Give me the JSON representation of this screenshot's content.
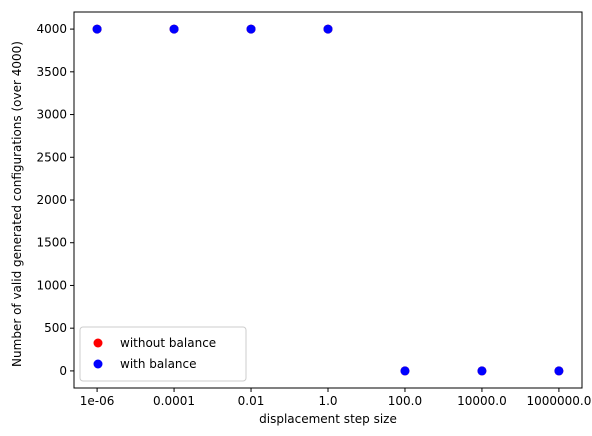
{
  "chart_data": {
    "type": "scatter",
    "title": "",
    "xlabel": "displacement step size",
    "ylabel": "Number of valid generated configurations (over 4000)",
    "x_scale": "categorical",
    "categories": [
      "1e-06",
      "0.0001",
      "0.01",
      "1.0",
      "100.0",
      "10000.0",
      "1000000.0"
    ],
    "y_ticks": [
      0,
      500,
      1000,
      1500,
      2000,
      2500,
      3000,
      3500,
      4000
    ],
    "ylim": [
      -200,
      4200
    ],
    "grid": false,
    "legend_position": "lower-left",
    "series": [
      {
        "name": "without balance",
        "color": "#ff0000",
        "values": [
          4000,
          4000,
          4000,
          4000,
          0,
          0,
          0
        ]
      },
      {
        "name": "with balance",
        "color": "#0000ff",
        "values": [
          4000,
          4000,
          4000,
          4000,
          0,
          0,
          0
        ]
      }
    ]
  }
}
